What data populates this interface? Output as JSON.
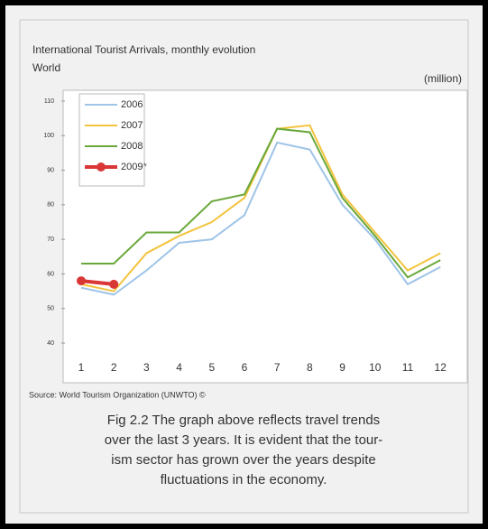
{
  "chart_data": {
    "type": "line",
    "title": "International Tourist Arrivals, monthly evolution",
    "subtitle": "World",
    "y_unit": "(million)",
    "categories": [
      "1",
      "2",
      "3",
      "4",
      "5",
      "6",
      "7",
      "8",
      "9",
      "10",
      "11",
      "12"
    ],
    "series": [
      {
        "name": "2006",
        "color": "#9fc4e8",
        "values": [
          56,
          54,
          61,
          69,
          70,
          77,
          98,
          96,
          80,
          70,
          57,
          62
        ]
      },
      {
        "name": "2007",
        "color": "#f3c33c",
        "values": [
          57,
          55,
          66,
          71,
          75,
          82,
          102,
          103,
          83,
          72,
          61,
          66
        ]
      },
      {
        "name": "2008",
        "color": "#6aa83b",
        "values": [
          63,
          63,
          72,
          72,
          81,
          83,
          102,
          101,
          82,
          71,
          59,
          64
        ]
      },
      {
        "name": "2009*",
        "color": "#d93636",
        "markers": true,
        "values": [
          58,
          57,
          null,
          null,
          null,
          null,
          null,
          null,
          null,
          null,
          null,
          null
        ]
      }
    ],
    "ylim": [
      40,
      110
    ],
    "yticks": [
      40,
      50,
      60,
      70,
      80,
      90,
      100,
      110
    ],
    "grid": false,
    "legend": "top-left",
    "source": "Source: World Tourism Organization (UNWTO) ©",
    "caption": [
      "Fig 2.2  The graph above reflects travel trends",
      "over the last 3 years.  It is evident that the tour-",
      "ism sector has grown over the years despite",
      "fluctuations in the economy."
    ]
  }
}
